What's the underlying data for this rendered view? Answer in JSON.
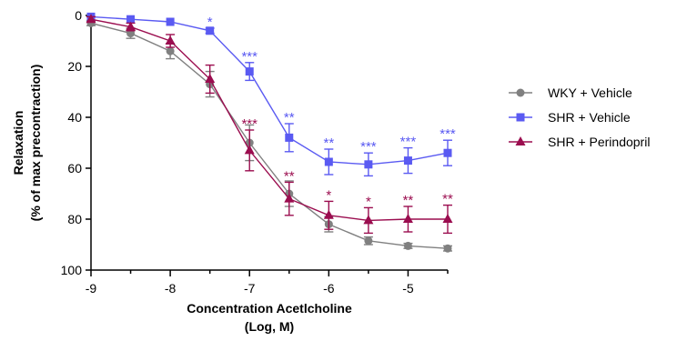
{
  "chart_data": {
    "type": "line",
    "xlabel": [
      "Concentration Acetlcholine",
      "(Log, M)"
    ],
    "ylabel": [
      "Relaxation",
      "(% of max precontraction)"
    ],
    "xlim": [
      -9,
      -4.5
    ],
    "ylim": [
      0,
      100
    ],
    "y_inverted": true,
    "x_ticks": [
      -9,
      -8,
      -7,
      -6,
      -5
    ],
    "x_tick_labels": [
      "-9",
      "-8",
      "-7",
      "-6",
      "-5"
    ],
    "y_ticks": [
      0,
      20,
      40,
      60,
      80,
      100
    ],
    "y_tick_labels": [
      "0",
      "20",
      "40",
      "60",
      "80",
      "100"
    ],
    "legend_position": "right",
    "series": [
      {
        "name": "WKY + Vehicle",
        "color": "#808080",
        "marker": "circle",
        "x": [
          -9,
          -8.5,
          -8,
          -7.5,
          -7,
          -6.5,
          -6,
          -5.5,
          -5,
          -4.5
        ],
        "y": [
          3,
          7,
          14,
          27,
          50,
          70,
          82,
          88.5,
          90.5,
          91.5
        ],
        "err": [
          1,
          2,
          3,
          5,
          7,
          5,
          3,
          1.5,
          1,
          1
        ],
        "significance": [
          "",
          "",
          "",
          "",
          "",
          "",
          "",
          "",
          "",
          ""
        ]
      },
      {
        "name": "SHR + Vehicle",
        "color": "#5a5af2",
        "marker": "square",
        "x": [
          -9,
          -8.5,
          -8,
          -7.5,
          -7,
          -6.5,
          -6,
          -5.5,
          -5,
          -4.5
        ],
        "y": [
          0.5,
          1.5,
          2.5,
          6,
          22,
          48,
          57.5,
          58.5,
          57,
          54
        ],
        "err": [
          0,
          0,
          0,
          1,
          3.5,
          5.5,
          5,
          4.5,
          5,
          5
        ],
        "significance": [
          "",
          "",
          "",
          "*",
          "***",
          "**",
          "**",
          "***",
          "***",
          "***"
        ]
      },
      {
        "name": "SHR + Perindopril",
        "color": "#9b0d4f",
        "marker": "triangle",
        "x": [
          -9,
          -8.5,
          -8,
          -7.5,
          -7,
          -6.5,
          -6,
          -5.5,
          -5,
          -4.5
        ],
        "y": [
          1.5,
          4.5,
          10,
          25,
          53,
          72,
          78.5,
          80.5,
          80,
          80
        ],
        "err": [
          1,
          1.5,
          2.5,
          5.5,
          8,
          6.5,
          5.5,
          5,
          5,
          5.5
        ],
        "significance": [
          "",
          "",
          "",
          "",
          "***",
          "**",
          "*",
          "*",
          "**",
          "**"
        ]
      }
    ]
  }
}
